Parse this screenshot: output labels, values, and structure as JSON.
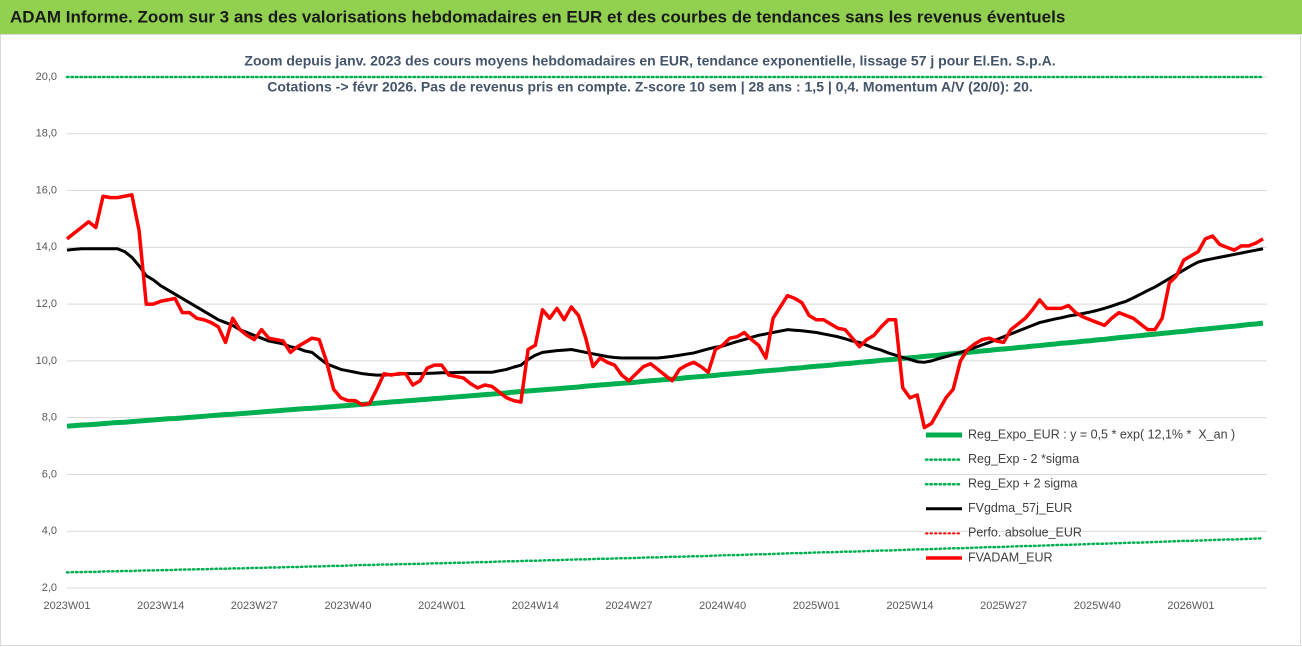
{
  "chart_data": {
    "type": "line",
    "title": "ADAM Informe. Zoom sur 3 ans des valorisations hebdomadaires en EUR et des courbes de tendances sans les revenus éventuels",
    "subtitle": [
      "Zoom depuis janv. 2023 des cours moyens hebdomadaires en EUR, tendance exponentielle, lissage 57 j pour El.En. S.p.A.",
      "Cotations -> févr 2026. Pas de revenus pris en compte. Z-score 10 sem | 28 ans : 1,5 | 0,4. Momentum A/V (20/0): 20."
    ],
    "categories": [
      "2023W01",
      null,
      null,
      null,
      null,
      null,
      null,
      null,
      null,
      null,
      null,
      null,
      null,
      "2023W14",
      null,
      null,
      null,
      null,
      null,
      null,
      null,
      null,
      null,
      null,
      null,
      null,
      "2023W27",
      null,
      null,
      null,
      null,
      null,
      null,
      null,
      null,
      null,
      null,
      null,
      null,
      "2023W40",
      null,
      null,
      null,
      null,
      null,
      null,
      null,
      null,
      null,
      null,
      null,
      null,
      "2024W01",
      null,
      null,
      null,
      null,
      null,
      null,
      null,
      null,
      null,
      null,
      null,
      null,
      "2024W14",
      null,
      null,
      null,
      null,
      null,
      null,
      null,
      null,
      null,
      null,
      null,
      null,
      "2024W27",
      null,
      null,
      null,
      null,
      null,
      null,
      null,
      null,
      null,
      null,
      null,
      null,
      "2024W40",
      null,
      null,
      null,
      null,
      null,
      null,
      null,
      null,
      null,
      null,
      null,
      null,
      "2025W01",
      null,
      null,
      null,
      null,
      null,
      null,
      null,
      null,
      null,
      null,
      null,
      null,
      "2025W14",
      null,
      null,
      null,
      null,
      null,
      null,
      null,
      null,
      null,
      null,
      null,
      null,
      "2025W27",
      null,
      null,
      null,
      null,
      null,
      null,
      null,
      null,
      null,
      null,
      null,
      null,
      "2025W40",
      null,
      null,
      null,
      null,
      null,
      null,
      null,
      null,
      null,
      null,
      null,
      null,
      "2026W01",
      null,
      null,
      null,
      null,
      null,
      null,
      null,
      null,
      null,
      null
    ],
    "ylim": [
      2,
      20
    ],
    "yticks": [
      {
        "value": 2,
        "label": "2,0"
      },
      {
        "value": 4,
        "label": "4,0"
      },
      {
        "value": 6,
        "label": "6,0"
      },
      {
        "value": 8,
        "label": "8,0"
      },
      {
        "value": 10,
        "label": "10,0"
      },
      {
        "value": 12,
        "label": "12,0"
      },
      {
        "value": 14,
        "label": "14,0"
      },
      {
        "value": 16,
        "label": "16,0"
      },
      {
        "value": 18,
        "label": "18,0"
      },
      {
        "value": 20,
        "label": "20,0"
      }
    ],
    "grid": true,
    "legend": "bottom-right",
    "series": [
      {
        "name": "Reg_Expo_EUR : y = 0,5 * exp( 12,1% *  X_an )",
        "color": "#00b050",
        "dash": "solid",
        "values": [
          7.7,
          7.72,
          7.74,
          7.75,
          7.77,
          7.79,
          7.81,
          7.83,
          7.84,
          7.86,
          7.88,
          7.9,
          7.92,
          7.94,
          7.96,
          7.97,
          7.99,
          8.01,
          8.03,
          8.05,
          8.07,
          8.09,
          8.11,
          8.12,
          8.14,
          8.16,
          8.18,
          8.2,
          8.22,
          8.24,
          8.26,
          8.28,
          8.3,
          8.32,
          8.33,
          8.35,
          8.37,
          8.39,
          8.41,
          8.43,
          8.45,
          8.47,
          8.49,
          8.51,
          8.53,
          8.55,
          8.57,
          8.59,
          8.61,
          8.63,
          8.65,
          8.67,
          8.69,
          8.71,
          8.73,
          8.75,
          8.77,
          8.79,
          8.81,
          8.83,
          8.85,
          8.87,
          8.9,
          8.92,
          8.94,
          8.96,
          8.98,
          9.0,
          9.02,
          9.04,
          9.06,
          9.08,
          9.11,
          9.13,
          9.15,
          9.17,
          9.19,
          9.21,
          9.23,
          9.25,
          9.28,
          9.3,
          9.32,
          9.34,
          9.36,
          9.38,
          9.41,
          9.43,
          9.45,
          9.47,
          9.49,
          9.52,
          9.54,
          9.56,
          9.58,
          9.6,
          9.63,
          9.65,
          9.67,
          9.69,
          9.72,
          9.74,
          9.76,
          9.79,
          9.81,
          9.83,
          9.85,
          9.88,
          9.9,
          9.92,
          9.95,
          9.97,
          9.99,
          10.02,
          10.04,
          10.06,
          10.09,
          10.11,
          10.13,
          10.16,
          10.18,
          10.2,
          10.23,
          10.25,
          10.28,
          10.3,
          10.32,
          10.35,
          10.37,
          10.4,
          10.42,
          10.44,
          10.47,
          10.49,
          10.52,
          10.54,
          10.57,
          10.59,
          10.62,
          10.64,
          10.66,
          10.69,
          10.71,
          10.74,
          10.76,
          10.79,
          10.82,
          10.84,
          10.87,
          10.89,
          10.92,
          10.94,
          10.97,
          10.99,
          11.02,
          11.04,
          11.07,
          11.1,
          11.12,
          11.15,
          11.17,
          11.2,
          11.22,
          11.25,
          11.28,
          11.3,
          11.33
        ]
      },
      {
        "name": "Reg_Exp - 2 *sigma",
        "color": "#00b050",
        "dash": "dotted",
        "values": [
          2.55,
          2.56,
          2.56,
          2.57,
          2.57,
          2.58,
          2.59,
          2.59,
          2.6,
          2.6,
          2.61,
          2.62,
          2.62,
          2.63,
          2.63,
          2.64,
          2.65,
          2.65,
          2.66,
          2.66,
          2.67,
          2.68,
          2.68,
          2.69,
          2.69,
          2.7,
          2.71,
          2.71,
          2.72,
          2.72,
          2.73,
          2.74,
          2.74,
          2.75,
          2.76,
          2.76,
          2.77,
          2.78,
          2.78,
          2.79,
          2.8,
          2.81,
          2.81,
          2.82,
          2.83,
          2.83,
          2.84,
          2.84,
          2.85,
          2.85,
          2.86,
          2.87,
          2.87,
          2.88,
          2.89,
          2.89,
          2.9,
          2.91,
          2.91,
          2.92,
          2.93,
          2.94,
          2.94,
          2.95,
          2.96,
          2.96,
          2.97,
          2.98,
          2.98,
          2.99,
          3.0,
          3.01,
          3.01,
          3.02,
          3.03,
          3.03,
          3.04,
          3.05,
          3.05,
          3.06,
          3.07,
          3.08,
          3.08,
          3.09,
          3.1,
          3.1,
          3.11,
          3.12,
          3.12,
          3.13,
          3.14,
          3.15,
          3.16,
          3.16,
          3.17,
          3.18,
          3.19,
          3.19,
          3.2,
          3.21,
          3.22,
          3.23,
          3.23,
          3.24,
          3.25,
          3.26,
          3.26,
          3.27,
          3.28,
          3.28,
          3.29,
          3.3,
          3.31,
          3.32,
          3.32,
          3.33,
          3.34,
          3.35,
          3.36,
          3.36,
          3.37,
          3.38,
          3.39,
          3.4,
          3.4,
          3.41,
          3.42,
          3.43,
          3.44,
          3.44,
          3.45,
          3.46,
          3.47,
          3.48,
          3.48,
          3.49,
          3.5,
          3.51,
          3.52,
          3.52,
          3.53,
          3.54,
          3.55,
          3.56,
          3.56,
          3.57,
          3.58,
          3.59,
          3.6,
          3.6,
          3.61,
          3.62,
          3.63,
          3.64,
          3.65,
          3.66,
          3.66,
          3.67,
          3.68,
          3.69,
          3.7,
          3.71,
          3.71,
          3.72,
          3.73,
          3.74,
          3.75
        ]
      },
      {
        "name": "Reg_Exp + 2 sigma",
        "color": "#00b050",
        "dash": "dotted",
        "values": [
          20,
          20,
          20,
          20,
          20,
          20,
          20,
          20,
          20,
          20,
          20,
          20,
          20,
          20,
          20,
          20,
          20,
          20,
          20,
          20,
          20,
          20,
          20,
          20,
          20,
          20,
          20,
          20,
          20,
          20,
          20,
          20,
          20,
          20,
          20,
          20,
          20,
          20,
          20,
          20,
          20,
          20,
          20,
          20,
          20,
          20,
          20,
          20,
          20,
          20,
          20,
          20,
          20,
          20,
          20,
          20,
          20,
          20,
          20,
          20,
          20,
          20,
          20,
          20,
          20,
          20,
          20,
          20,
          20,
          20,
          20,
          20,
          20,
          20,
          20,
          20,
          20,
          20,
          20,
          20,
          20,
          20,
          20,
          20,
          20,
          20,
          20,
          20,
          20,
          20,
          20,
          20,
          20,
          20,
          20,
          20,
          20,
          20,
          20,
          20,
          20,
          20,
          20,
          20,
          20,
          20,
          20,
          20,
          20,
          20,
          20,
          20,
          20,
          20,
          20,
          20,
          20,
          20,
          20,
          20,
          20,
          20,
          20,
          20,
          20,
          20,
          20,
          20,
          20,
          20,
          20,
          20,
          20,
          20,
          20,
          20,
          20,
          20,
          20,
          20,
          20,
          20,
          20,
          20,
          20,
          20,
          20,
          20,
          20,
          20,
          20,
          20,
          20,
          20,
          20,
          20,
          20,
          20,
          20,
          20,
          20,
          20,
          20,
          20,
          20,
          20,
          20
        ]
      },
      {
        "name": "FVgdma_57j_EUR",
        "color": "#000000",
        "dash": "solid",
        "values": [
          13.9,
          13.93,
          13.95,
          13.95,
          13.95,
          13.95,
          13.95,
          13.95,
          13.85,
          13.65,
          13.35,
          13.0,
          12.85,
          12.65,
          12.5,
          12.35,
          12.2,
          12.05,
          11.9,
          11.75,
          11.6,
          11.45,
          11.35,
          11.25,
          11.1,
          11.0,
          10.9,
          10.8,
          10.7,
          10.65,
          10.6,
          10.5,
          10.45,
          10.35,
          10.3,
          10.1,
          9.9,
          9.8,
          9.7,
          9.65,
          9.6,
          9.55,
          9.52,
          9.5,
          9.5,
          9.52,
          9.53,
          9.55,
          9.55,
          9.55,
          9.56,
          9.57,
          9.58,
          9.58,
          9.59,
          9.6,
          9.6,
          9.6,
          9.6,
          9.6,
          9.65,
          9.7,
          9.78,
          9.85,
          10.05,
          10.2,
          10.3,
          10.33,
          10.36,
          10.38,
          10.4,
          10.35,
          10.3,
          10.25,
          10.2,
          10.15,
          10.12,
          10.1,
          10.1,
          10.1,
          10.1,
          10.1,
          10.1,
          10.13,
          10.16,
          10.2,
          10.24,
          10.28,
          10.35,
          10.42,
          10.48,
          10.52,
          10.6,
          10.68,
          10.75,
          10.83,
          10.9,
          10.95,
          11.0,
          11.05,
          11.1,
          11.08,
          11.06,
          11.03,
          11.0,
          10.95,
          10.9,
          10.85,
          10.78,
          10.7,
          10.65,
          10.55,
          10.45,
          10.38,
          10.28,
          10.2,
          10.12,
          10.05,
          9.97,
          9.95,
          10.0,
          10.08,
          10.15,
          10.22,
          10.3,
          10.38,
          10.47,
          10.56,
          10.65,
          10.75,
          10.85,
          10.95,
          11.05,
          11.15,
          11.25,
          11.35,
          11.41,
          11.47,
          11.52,
          11.58,
          11.62,
          11.67,
          11.72,
          11.78,
          11.85,
          11.93,
          12.02,
          12.1,
          12.22,
          12.35,
          12.48,
          12.6,
          12.75,
          12.9,
          13.05,
          13.2,
          13.35,
          13.48,
          13.55,
          13.6,
          13.65,
          13.7,
          13.75,
          13.8,
          13.85,
          13.9,
          13.95
        ]
      },
      {
        "name": "Perfo. absolue_EUR",
        "color": "#ff0000",
        "dash": "dotted",
        "values": [
          null,
          null,
          null,
          null,
          null,
          null,
          null,
          null,
          null,
          null,
          null,
          null,
          null,
          null,
          null,
          null,
          null,
          null,
          null,
          null,
          null,
          null,
          null,
          null,
          null,
          null,
          null,
          null,
          null,
          null,
          null,
          null,
          null,
          null,
          null,
          null,
          null,
          null,
          null,
          null,
          null,
          null,
          null,
          null,
          null,
          null,
          null,
          null,
          null,
          null,
          null,
          null,
          null,
          null,
          null,
          null,
          null,
          null,
          null,
          null,
          null,
          null,
          null,
          null,
          null,
          null,
          null,
          null,
          null,
          null,
          null,
          null,
          null,
          null,
          null,
          null,
          null,
          null,
          null,
          null,
          null,
          null,
          null,
          null,
          null,
          null,
          null,
          null,
          null,
          null,
          null,
          null,
          null,
          null,
          null,
          null,
          null,
          null,
          null,
          null,
          null,
          null,
          null,
          null,
          null,
          null,
          null,
          null,
          null,
          null,
          null,
          null,
          null,
          null,
          null,
          null,
          null,
          null,
          null,
          null,
          null,
          null,
          null,
          null,
          null,
          null,
          null,
          null,
          null,
          null,
          null,
          null,
          null,
          null,
          null,
          null,
          null,
          null,
          null,
          null,
          null,
          null,
          null,
          null,
          null,
          null,
          null,
          null,
          null,
          null,
          null,
          null,
          null,
          null,
          null,
          null,
          null,
          null,
          null,
          null,
          null,
          null,
          null,
          null,
          null,
          null,
          null
        ]
      },
      {
        "name": "FVADAM_EUR",
        "color": "#ff0000",
        "dash": "solid",
        "values": [
          14.3,
          14.5,
          14.7,
          14.9,
          14.7,
          15.8,
          15.75,
          15.75,
          15.8,
          15.85,
          14.6,
          12.0,
          12.0,
          12.1,
          12.15,
          12.2,
          11.7,
          11.7,
          11.5,
          11.45,
          11.35,
          11.2,
          10.65,
          11.5,
          11.1,
          10.9,
          10.75,
          11.1,
          10.8,
          10.75,
          10.7,
          10.3,
          10.5,
          10.65,
          10.8,
          10.75,
          10.0,
          9.0,
          8.7,
          8.6,
          8.6,
          8.45,
          8.5,
          9.0,
          9.55,
          9.5,
          9.55,
          9.55,
          9.15,
          9.3,
          9.75,
          9.85,
          9.85,
          9.5,
          9.45,
          9.4,
          9.2,
          9.05,
          9.15,
          9.1,
          8.9,
          8.7,
          8.6,
          8.55,
          10.4,
          10.55,
          11.8,
          11.5,
          11.85,
          11.45,
          11.9,
          11.6,
          10.8,
          9.8,
          10.1,
          9.95,
          9.85,
          9.5,
          9.3,
          9.55,
          9.8,
          9.9,
          9.7,
          9.5,
          9.3,
          9.7,
          9.85,
          9.95,
          9.8,
          9.6,
          10.4,
          10.55,
          10.8,
          10.85,
          11.0,
          10.75,
          10.55,
          10.1,
          11.5,
          11.9,
          12.3,
          12.2,
          12.05,
          11.6,
          11.45,
          11.45,
          11.3,
          11.15,
          11.1,
          10.8,
          10.5,
          10.75,
          10.9,
          11.2,
          11.45,
          11.45,
          9.05,
          8.7,
          8.8,
          7.65,
          7.8,
          8.25,
          8.7,
          9.0,
          10.0,
          10.4,
          10.6,
          10.75,
          10.8,
          10.7,
          10.65,
          11.1,
          11.3,
          11.5,
          11.8,
          12.15,
          11.85,
          11.85,
          11.85,
          11.95,
          11.7,
          11.55,
          11.45,
          11.35,
          11.25,
          11.5,
          11.7,
          11.6,
          11.5,
          11.3,
          11.1,
          11.1,
          11.5,
          12.75,
          13.0,
          13.55,
          13.7,
          13.85,
          14.3,
          14.4,
          14.1,
          14.0,
          13.9,
          14.05,
          14.05,
          14.15,
          14.3
        ]
      }
    ]
  }
}
